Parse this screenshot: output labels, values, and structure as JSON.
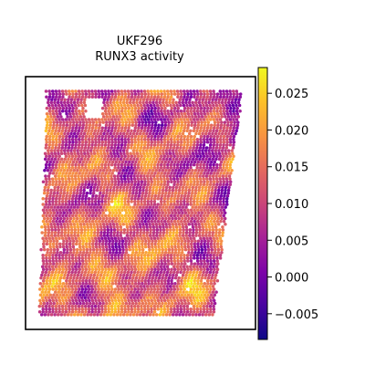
{
  "chart_data": {
    "type": "heatmap",
    "subtype": "spatial-transcriptomics-spot-map",
    "title_lines": [
      "UKF296",
      "RUNX3 activity"
    ],
    "colormap": "plasma",
    "colorbar": {
      "vmin": -0.0085,
      "vmax": 0.0285,
      "ticks": [
        -0.005,
        0.0,
        0.005,
        0.01,
        0.015,
        0.02,
        0.025
      ],
      "tick_labels": [
        "−0.005",
        "0.000",
        "0.005",
        "0.010",
        "0.015",
        "0.020",
        "0.025"
      ]
    },
    "value_range_observed": [
      -0.008,
      0.028
    ],
    "axes_visible": false,
    "grid": false,
    "legend": "colorbar-right"
  }
}
